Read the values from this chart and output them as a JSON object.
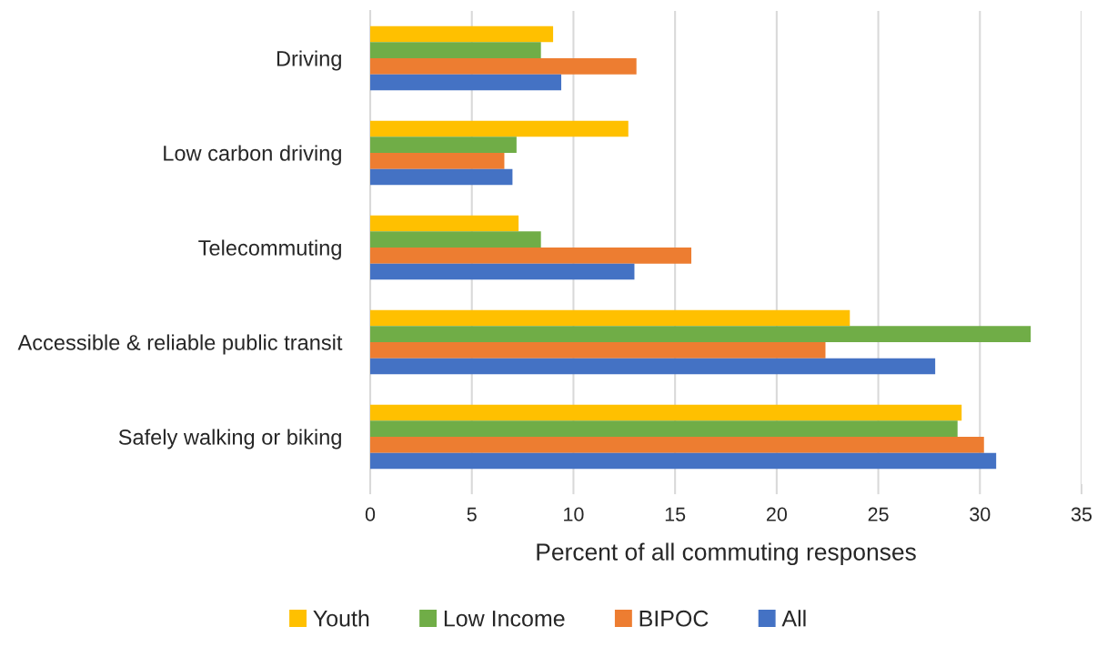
{
  "chart_data": {
    "type": "bar",
    "orientation": "horizontal",
    "xlabel": "Percent of all commuting responses",
    "categories": [
      "Driving",
      "Low carbon driving",
      "Telecommuting",
      "Accessible & reliable public transit",
      "Safely walking or biking"
    ],
    "series": [
      {
        "name": "Youth",
        "color": "#ffc000",
        "values": [
          9.0,
          12.7,
          7.3,
          23.6,
          29.1
        ]
      },
      {
        "name": "Low Income",
        "color": "#70ad47",
        "values": [
          8.4,
          7.2,
          8.4,
          32.5,
          28.9
        ]
      },
      {
        "name": "BIPOC",
        "color": "#ed7d31",
        "values": [
          13.1,
          6.6,
          15.8,
          22.4,
          30.2
        ]
      },
      {
        "name": "All",
        "color": "#4472c4",
        "values": [
          9.4,
          7.0,
          13.0,
          27.8,
          30.8
        ]
      }
    ],
    "xlim": [
      0,
      35
    ],
    "xticks": [
      0,
      5,
      10,
      15,
      20,
      25,
      30,
      35
    ],
    "grid": "x",
    "legend": "bottom"
  }
}
